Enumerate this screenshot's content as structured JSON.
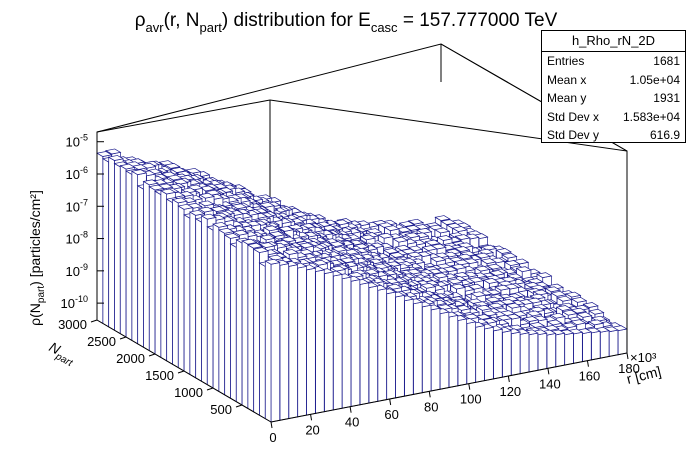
{
  "title": {
    "rho": "ρ",
    "rho_sub": "avr",
    "mid": "(r, N",
    "n_sub": "part",
    "mid2": ") distribution for E",
    "e_sub": "casc",
    "tail": " = 157.777000 TeV"
  },
  "stats": {
    "name": "h_Rho_rN_2D",
    "rows": [
      {
        "label": "Entries",
        "value": "1681"
      },
      {
        "label": "Mean x",
        "value": "1.05e+04"
      },
      {
        "label": "Mean y",
        "value": "1931"
      },
      {
        "label": "Std Dev x",
        "value": "1.583e+04"
      },
      {
        "label": "Std Dev y",
        "value": "616.9"
      }
    ]
  },
  "colors": {
    "bar_stroke": "#1a1a8c",
    "bar_face": "#ffffff",
    "frame": "#000000"
  },
  "chart_data": {
    "type": "lego",
    "xlabel": "r [cm]",
    "xlabel_parts": {
      "main": "r [cm]"
    },
    "x_multiplier": "×10³",
    "x_ticks": [
      0,
      20,
      40,
      60,
      80,
      100,
      120,
      140,
      160,
      180
    ],
    "xlim": [
      0,
      180
    ],
    "ylabel_parts": {
      "main": "N",
      "sub": "part"
    },
    "y_ticks": [
      500,
      1000,
      1500,
      2000,
      2500,
      3000
    ],
    "ylim": [
      0,
      3000
    ],
    "zlabel_parts": {
      "pre": "ρ(N",
      "sub": "part",
      "post": ") [particles/cm²]"
    },
    "z_scale": "log",
    "z_ticks": [
      {
        "base": "10",
        "exp": "-10",
        "value": 1e-10
      },
      {
        "base": "10",
        "exp": "-9",
        "value": 1e-09
      },
      {
        "base": "10",
        "exp": "-8",
        "value": 1e-08
      },
      {
        "base": "10",
        "exp": "-7",
        "value": 1e-07
      },
      {
        "base": "10",
        "exp": "-6",
        "value": 1e-06
      },
      {
        "base": "10",
        "exp": "-5",
        "value": 1e-05
      }
    ],
    "zlim": [
      3e-11,
      2e-05
    ],
    "front_row_n_part": 100,
    "front_row_values": [
      4.5e-07,
      3.8e-07,
      3.2e-07,
      2.6e-07,
      2.1e-07,
      1.7e-07,
      1.35e-07,
      1.05e-07,
      8e-08,
      6.2e-08,
      4.6e-08,
      3.4e-08,
      2.6e-08,
      1.9e-08,
      1.4e-08,
      1e-08,
      7.5e-09,
      5.6e-09,
      4.2e-09,
      3e-09,
      2.2e-09,
      1.6e-09,
      1.2e-09,
      8.6e-10,
      7e-10,
      5.6e-10,
      4.6e-10,
      3.8e-10,
      3.3e-10,
      2.9e-10,
      2.6e-10,
      2.3e-10,
      2.1e-10,
      1.9e-10,
      1.8e-10,
      1.65e-10,
      1.55e-10,
      1.45e-10,
      1.35e-10,
      1.3e-10
    ],
    "back_row_value_scale": 1.6,
    "surface_falloff_per_bin": 0.86
  }
}
